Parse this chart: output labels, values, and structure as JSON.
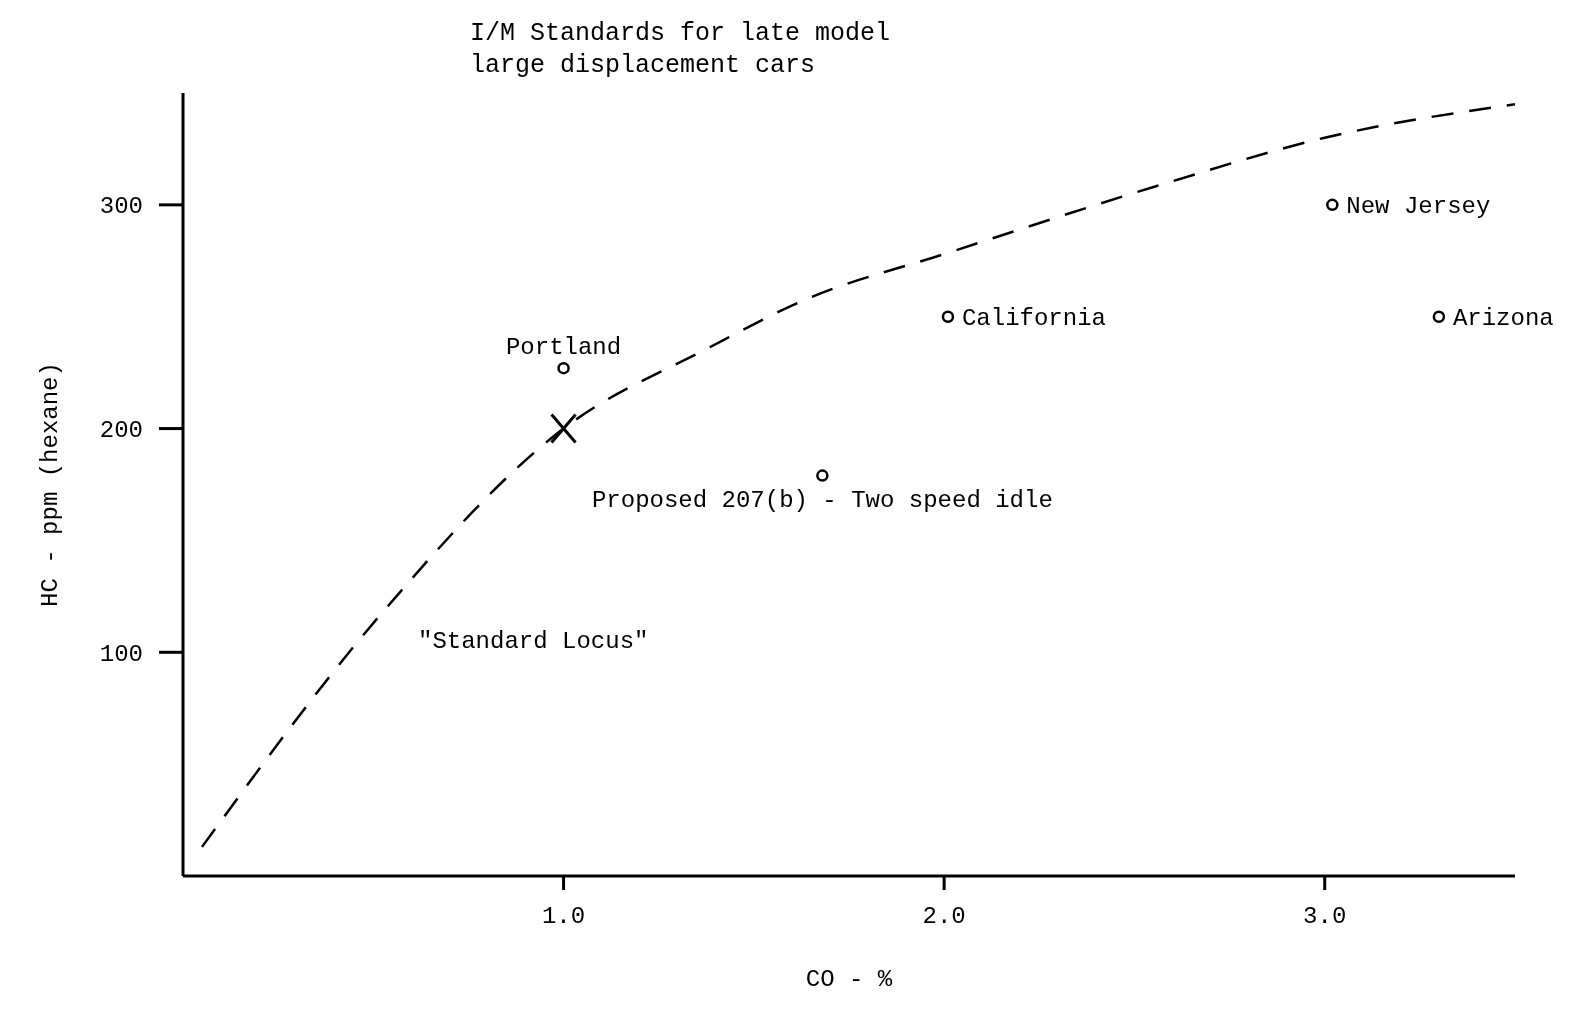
{
  "chart_data": {
    "type": "scatter",
    "title": "I/M Standards for late model\nlarge displacement cars",
    "xlabel": "CO - %",
    "ylabel": "HC - ppm (hexane)",
    "xlim": [
      0,
      3.5
    ],
    "ylim": [
      0,
      350
    ],
    "xticks": [
      {
        "value": 1,
        "label": "1.0"
      },
      {
        "value": 2,
        "label": "2.0"
      },
      {
        "value": 3,
        "label": "3.0"
      }
    ],
    "yticks": [
      100,
      200,
      300
    ],
    "grid": false,
    "legend": false,
    "series": [
      {
        "type": "line",
        "color": "#000000",
        "line_style": "dashed",
        "marker": "none",
        "x": [
          0.05,
          0.52,
          1.0,
          1.38,
          1.64,
          2.0,
          2.57,
          3.0,
          3.5
        ],
        "values": [
          13,
          117,
          200,
          236,
          258,
          278,
          309,
          330,
          345
        ]
      },
      {
        "color": "#000000",
        "marker": "cross",
        "x": [
          1.0
        ],
        "values": [
          200
        ]
      },
      {
        "color": "#000000",
        "marker": "circle",
        "x": [
          1.0,
          2.01,
          3.02,
          3.3,
          1.68
        ],
        "values": [
          227,
          250,
          300,
          250,
          179
        ]
      }
    ],
    "annotations": [
      {
        "text": "Portland",
        "x": 1.0,
        "y": 227
      },
      {
        "text": "California",
        "x": 2.01,
        "y": 250
      },
      {
        "text": "New Jersey",
        "x": 3.02,
        "y": 300
      },
      {
        "text": "Arizona",
        "x": 3.3,
        "y": 250
      },
      {
        "text": "Proposed 207(b) - Two speed idle",
        "x": 1.68,
        "y": 179
      },
      "\"Standard Locus\""
    ]
  }
}
